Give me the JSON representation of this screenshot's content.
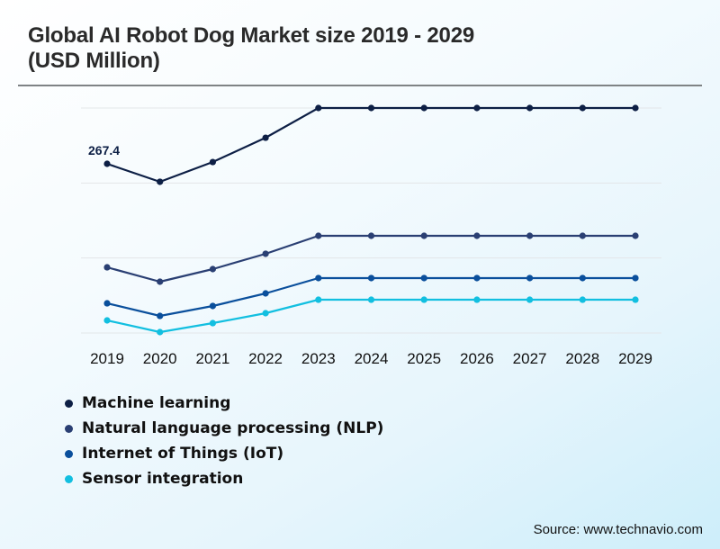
{
  "title_line1": "Global AI Robot Dog Market size 2019 - 2029",
  "title_line2": "(USD Million)",
  "source": "Source: www.technavio.com",
  "chart_data": {
    "type": "line",
    "title": "Global AI Robot Dog Market size 2019 - 2029 (USD Million)",
    "xlabel": "",
    "ylabel": "",
    "x": [
      "2019",
      "2020",
      "2021",
      "2022",
      "2023",
      "2024",
      "2025",
      "2026",
      "2027",
      "2028",
      "2029"
    ],
    "ylim": [
      0,
      355.6
    ],
    "grid": true,
    "gridlines": 4,
    "legend_position": "bottom-left",
    "series": [
      {
        "name": "Machine learning",
        "color": "#0d1f45",
        "values": [
          267.4,
          239.0,
          270.2,
          308.6,
          355.6,
          355.6,
          355.6,
          355.6,
          355.6,
          355.6,
          355.6
        ]
      },
      {
        "name": "Natural language processing (NLP)",
        "color": "#2a3f73",
        "values": [
          103.8,
          81.1,
          101.0,
          125.2,
          153.6,
          153.6,
          153.6,
          153.6,
          153.6,
          153.6,
          153.6
        ]
      },
      {
        "name": "Internet of Things (IoT)",
        "color": "#0a4f9c",
        "values": [
          46.9,
          27.0,
          42.7,
          62.6,
          86.8,
          86.8,
          86.8,
          86.8,
          86.8,
          86.8,
          86.8
        ]
      },
      {
        "name": "Sensor integration",
        "color": "#12bfe0",
        "values": [
          19.9,
          1.4,
          15.6,
          31.3,
          52.6,
          52.6,
          52.6,
          52.6,
          52.6,
          52.6,
          52.6
        ]
      }
    ],
    "annotations": [
      {
        "series": "Machine learning",
        "x": "2019",
        "text": "267.4"
      }
    ]
  }
}
